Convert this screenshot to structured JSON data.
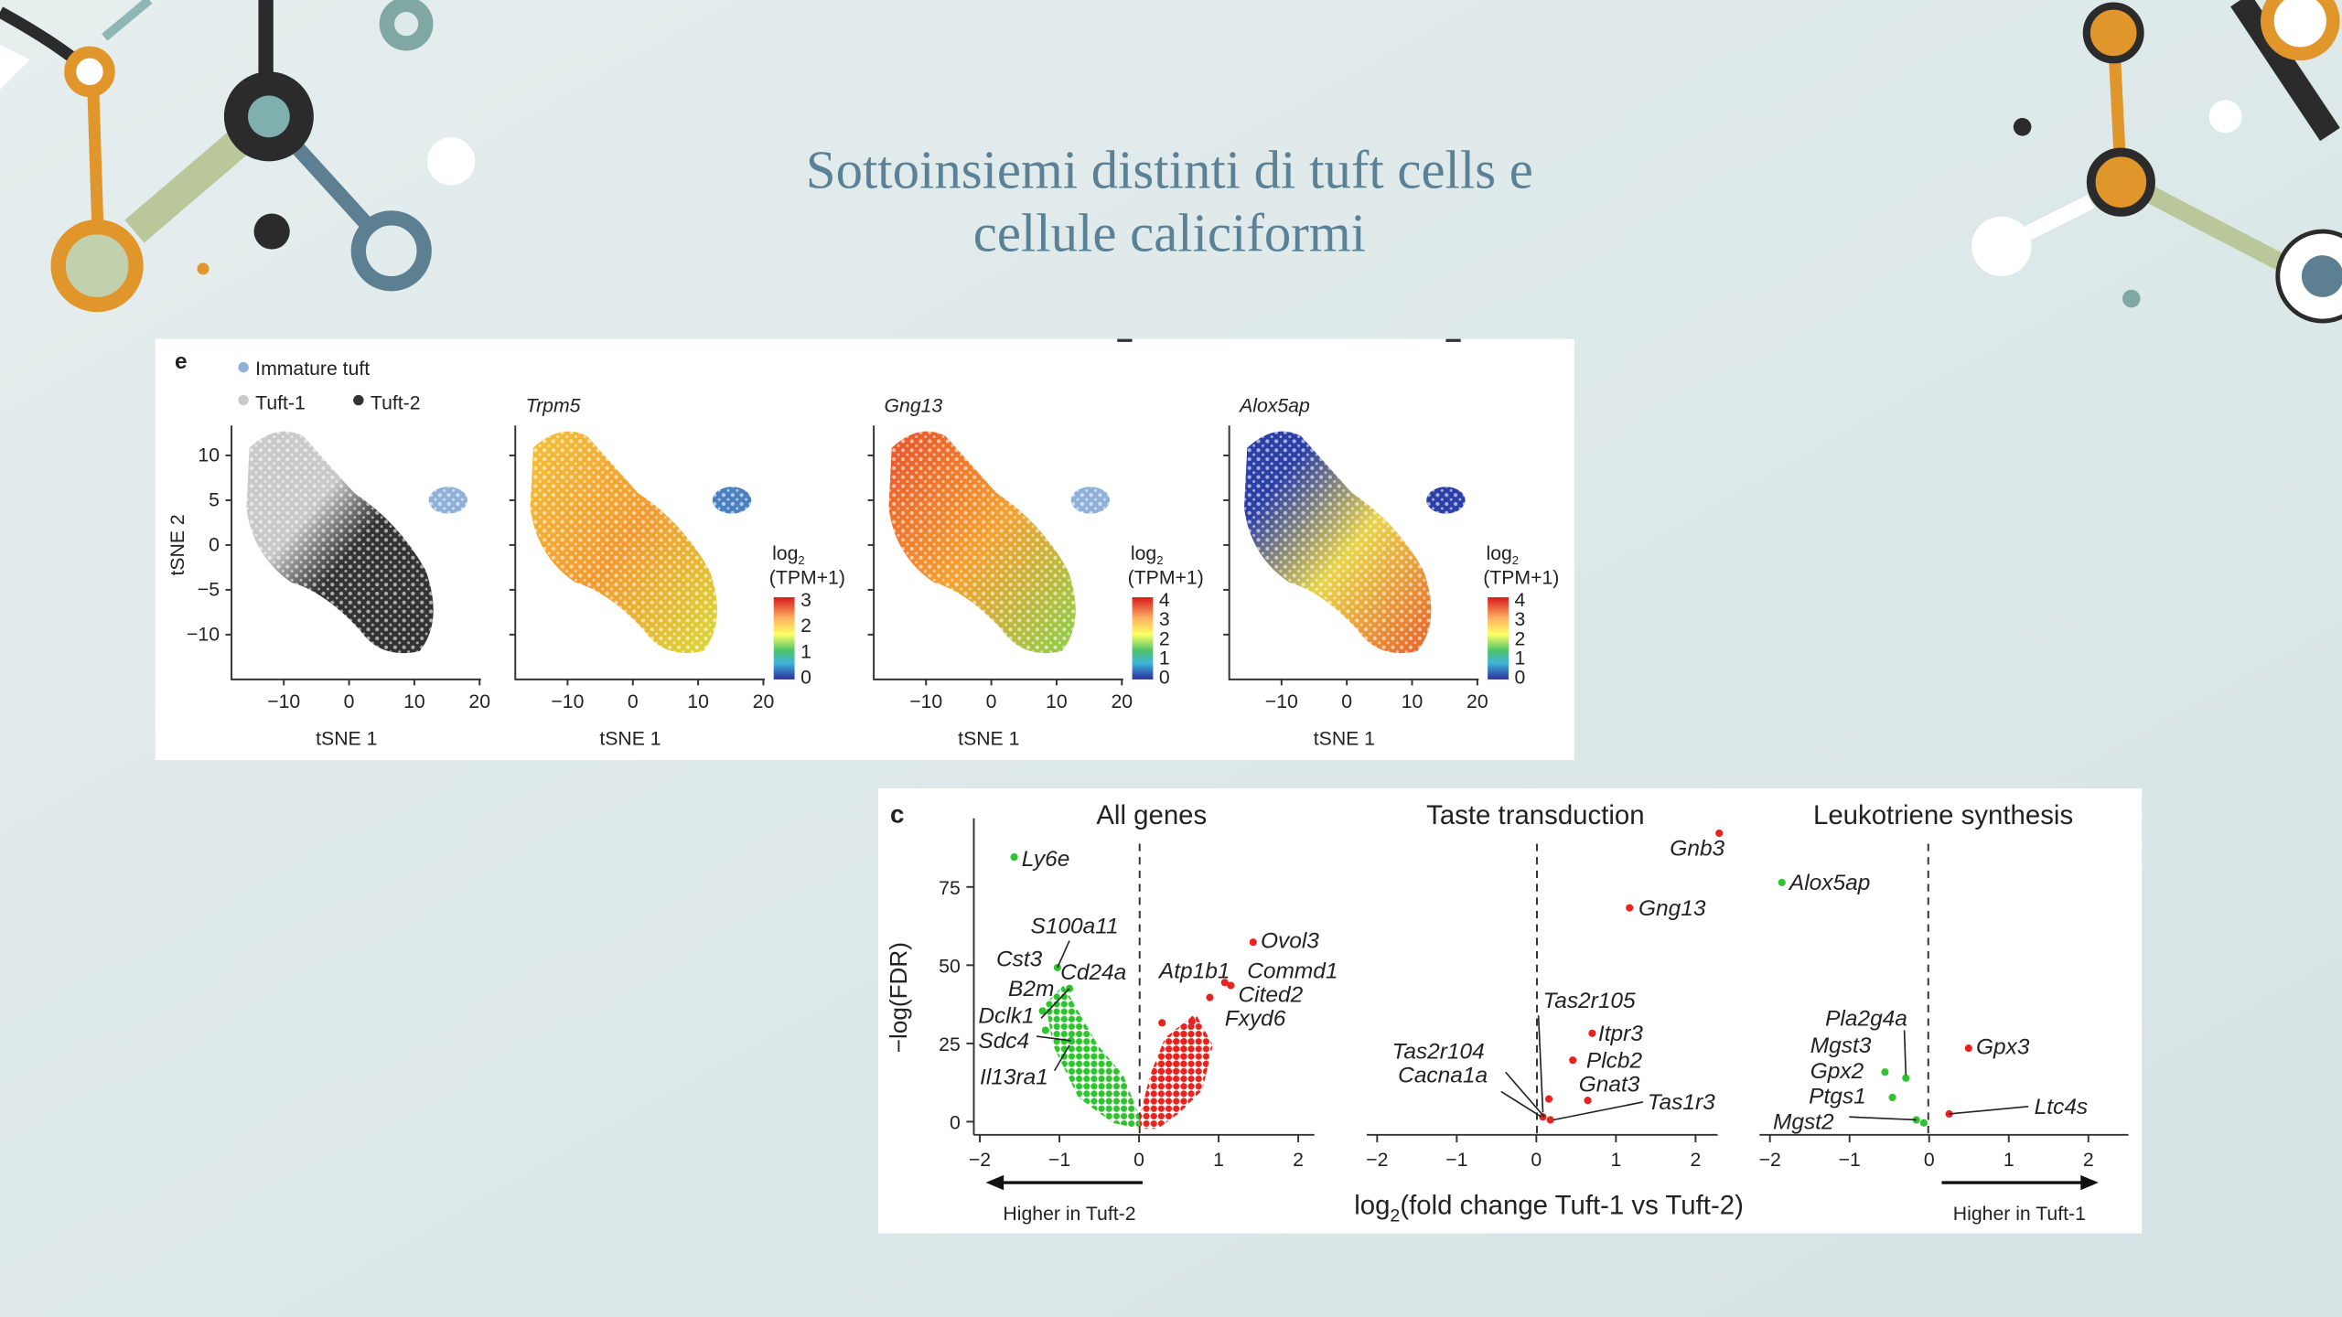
{
  "slide": {
    "title": [
      "Sottoinsiemi distinti di tuft cells e",
      "cellule caliciformi"
    ]
  },
  "figure_e": {
    "panel_label": "e",
    "legend": [
      "Immature tuft",
      "Tuft-1",
      "Tuft-2"
    ],
    "plot_titles": [
      "Trpm5",
      "Gng13",
      "Alox5ap"
    ],
    "x_ticks": [
      "−10",
      "0",
      "10",
      "20"
    ],
    "y_ticks": [
      "10",
      "5",
      "0",
      "−5",
      "−10"
    ],
    "x_label": "tSNE 1",
    "y_label": "tSNE 2",
    "colorbar_label": {
      "base": "log",
      "subscript": "2",
      "unit": "(TPM+1)"
    },
    "colorbar_ticks": [
      [
        "3",
        "2",
        "1",
        "0"
      ],
      [
        "4",
        "3",
        "2",
        "1",
        "0"
      ],
      [
        "4",
        "3",
        "2",
        "1",
        "0"
      ]
    ]
  },
  "figure_c": {
    "panel_label": "c",
    "panel_titles": [
      "All genes",
      "Taste transduction",
      "Leukotriene synthesis"
    ],
    "y_label": "−log(FDR)",
    "y_ticks": [
      "75",
      "50",
      "25",
      "0"
    ],
    "x_ticks": [
      "−2",
      "−1",
      "0",
      "1",
      "2"
    ],
    "x_label": {
      "base": "log",
      "subscript": "2",
      "text": "(fold change Tuft-1 vs Tuft-2)"
    },
    "left_arrow_label": "Higher in Tuft-2",
    "right_arrow_label": "Higher in Tuft-1",
    "genes": [
      [
        "Ly6e",
        "S100a11",
        "Cst3",
        "Cd24a",
        "B2m",
        "Dclk1",
        "Sdc4",
        "Il13ra1",
        "Ovol3",
        "Atp1b1",
        "Commd1",
        "Cited2",
        "Fxyd6"
      ],
      [
        "Gnb3",
        "Gng13",
        "Tas2r105",
        "Itpr3",
        "Plcb2",
        "Gnat3",
        "Tas1r3",
        "Tas2r104",
        "Cacna1a"
      ],
      [
        "Alox5ap",
        "Pla2g4a",
        "Mgst3",
        "Gpx2",
        "Ptgs1",
        "Mgst2",
        "Gpx3",
        "Ltc4s"
      ]
    ]
  }
}
